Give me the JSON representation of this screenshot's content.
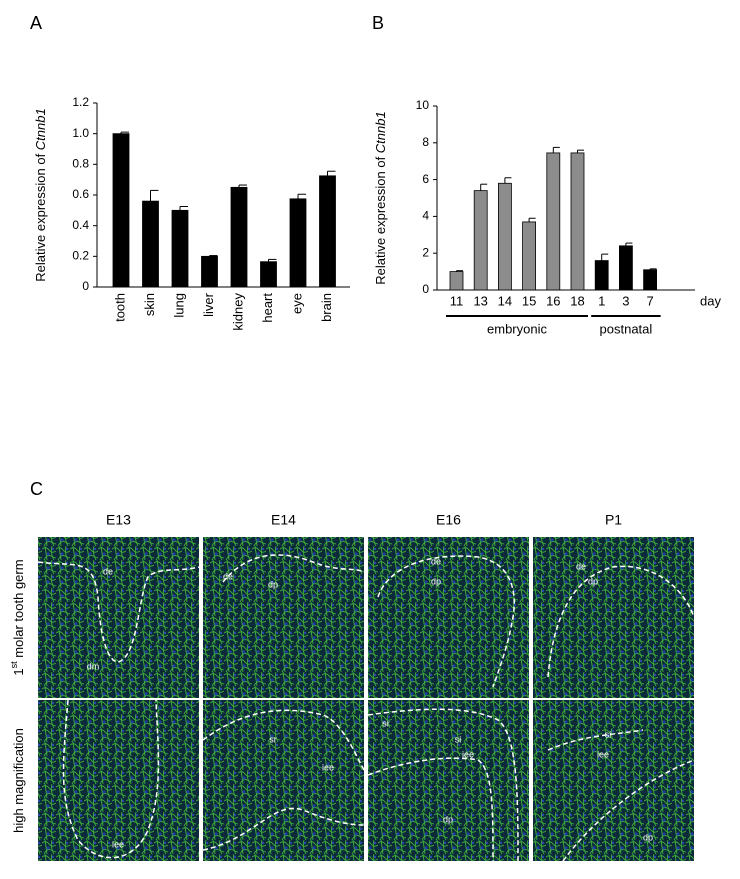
{
  "chart_data": [
    {
      "type": "bar",
      "panel": "A",
      "ylabel_parts": [
        "Relative expression of ",
        "Ctnnb1"
      ],
      "categories": [
        "tooth",
        "skin",
        "lung",
        "liver",
        "kidney",
        "heart",
        "eye",
        "brain"
      ],
      "values": [
        1.0,
        0.56,
        0.5,
        0.2,
        0.65,
        0.165,
        0.575,
        0.725
      ],
      "errors": [
        0.01,
        0.07,
        0.025,
        0.005,
        0.015,
        0.015,
        0.03,
        0.03
      ],
      "color": "#000000",
      "ylim": [
        0,
        1.2
      ],
      "yticks": [
        0,
        0.2,
        0.4,
        0.6,
        0.8,
        {
          "value": 1,
          "label": "1.0"
        },
        1.2
      ]
    },
    {
      "type": "bar",
      "panel": "B",
      "ylabel_parts": [
        "Relative expression of ",
        "Ctnnb1"
      ],
      "categories": [
        "11",
        "13",
        "14",
        "15",
        "16",
        "18",
        "1",
        "3",
        "7"
      ],
      "values": [
        1.0,
        5.4,
        5.8,
        3.7,
        7.45,
        7.45,
        1.6,
        2.4,
        1.1
      ],
      "errors": [
        0.05,
        0.35,
        0.3,
        0.2,
        0.3,
        0.15,
        0.35,
        0.15,
        0.05
      ],
      "colors": [
        "#8c8c8c",
        "#8c8c8c",
        "#8c8c8c",
        "#8c8c8c",
        "#8c8c8c",
        "#8c8c8c",
        "#000000",
        "#000000",
        "#000000"
      ],
      "x_unit": "day",
      "groups": [
        {
          "name": "embryonic",
          "from": 0,
          "to": 5
        },
        {
          "name": "postnatal",
          "from": 6,
          "to": 8
        }
      ],
      "ylim": [
        0,
        10
      ],
      "yticks": [
        0,
        2,
        4,
        6,
        8,
        10
      ]
    }
  ],
  "panel_c": {
    "label": "C",
    "columns": [
      "E13",
      "E14",
      "E16",
      "P1"
    ],
    "row_labels": [
      [
        "1",
        "st",
        " molar tooth germ"
      ],
      [
        "high magnification"
      ]
    ],
    "tissue_labels": [
      [
        [
          "de",
          "dm"
        ],
        [
          "de",
          "dp"
        ],
        [
          "de",
          "dp"
        ],
        [
          "de",
          "dp"
        ]
      ],
      [
        [
          "iee"
        ],
        [
          "sr",
          "iee"
        ],
        [
          "sr",
          "si",
          "iee",
          "dp"
        ],
        [
          "si",
          "iee",
          "dp"
        ]
      ]
    ]
  }
}
